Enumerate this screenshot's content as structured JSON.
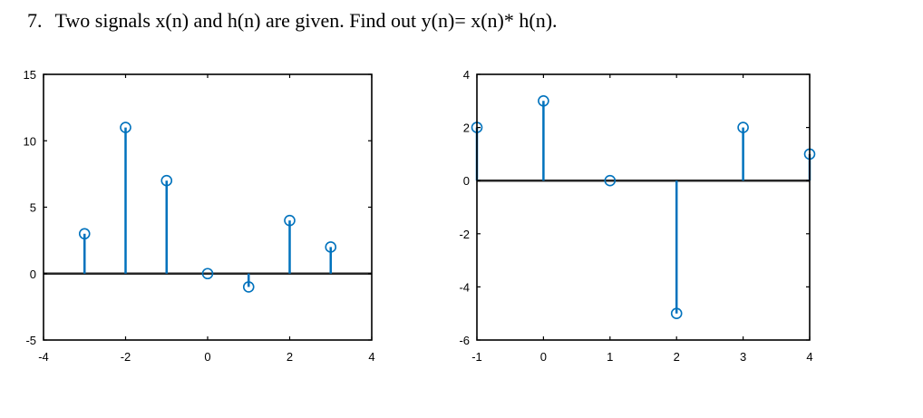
{
  "question": {
    "number": "7.",
    "text": "Two signals x(n) and h(n) are given. Find out y(n)= x(n)* h(n)."
  },
  "colors": {
    "stem": "#0072BD",
    "axis": "#000000",
    "baseline": "#262626"
  },
  "chart_data": [
    {
      "type": "stem",
      "title": "",
      "xlabel": "",
      "ylabel": "",
      "xlim": [
        -4,
        4
      ],
      "ylim": [
        -5,
        15
      ],
      "xticks": [
        -4,
        -2,
        0,
        2,
        4
      ],
      "yticks": [
        -5,
        0,
        5,
        10,
        15
      ],
      "x": [
        -3,
        -2,
        -1,
        0,
        1,
        2,
        3
      ],
      "y": [
        3,
        11,
        7,
        0,
        -1,
        4,
        2
      ],
      "grid": false,
      "legend": "none"
    },
    {
      "type": "stem",
      "title": "",
      "xlabel": "",
      "ylabel": "",
      "xlim": [
        -1,
        4
      ],
      "ylim": [
        -6,
        4
      ],
      "xticks": [
        -1,
        0,
        1,
        2,
        3,
        4
      ],
      "yticks": [
        -6,
        -4,
        -2,
        0,
        2,
        4
      ],
      "x": [
        -1,
        0,
        1,
        2,
        3,
        4
      ],
      "y": [
        2,
        3,
        0,
        -5,
        2,
        1
      ],
      "grid": false,
      "legend": "none"
    }
  ]
}
